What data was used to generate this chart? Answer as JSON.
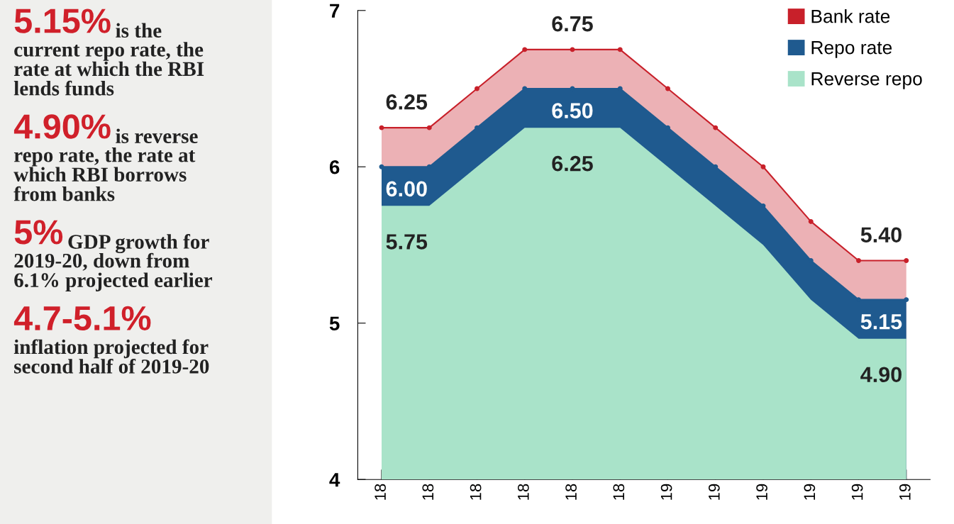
{
  "chart_data": [
    {
      "type": "other",
      "annotations": [
        "5.15%",
        "is the\ncurrent repo rate, the\nrate at which the RBI\nlends funds",
        "4.90%",
        "is reverse\nrepo rate, the rate at\nwhich RBI borrows\nfrom banks",
        "5%",
        "GDP growth for\n2019-20, down from\n6.1% projected earlier",
        "4.7-5.1%",
        "\ninflation projected for\nsecond half of 2019-20"
      ]
    },
    {
      "type": "area",
      "categories": [
        "18",
        "18",
        "18",
        "18",
        "18",
        "18",
        "19",
        "19",
        "19",
        "19",
        "19",
        "19"
      ],
      "ylim": [
        4,
        7
      ],
      "yticks": [
        4,
        5,
        6,
        7
      ],
      "legend": "top right",
      "series": [
        {
          "name": "Bank rate",
          "color": "#c8202a",
          "marker": "circle",
          "values": [
            6.25,
            6.25,
            6.5,
            6.75,
            6.75,
            6.75,
            6.5,
            6.25,
            6.0,
            5.65,
            5.4,
            5.4
          ],
          "value_labels": [
            "6.25",
            null,
            null,
            null,
            "6.75",
            null,
            null,
            null,
            null,
            null,
            null,
            "5.40"
          ]
        },
        {
          "name": "Repo rate",
          "color": "#1f5a8f",
          "marker": "circle",
          "values": [
            6.0,
            6.0,
            6.25,
            6.5,
            6.5,
            6.5,
            6.25,
            6.0,
            5.75,
            5.4,
            5.15,
            5.15
          ],
          "value_labels": [
            "6.00",
            null,
            null,
            null,
            "6.50",
            null,
            null,
            null,
            null,
            null,
            null,
            "5.15"
          ]
        },
        {
          "name": "Reverse repo",
          "color": "#a9e3c9",
          "values": [
            5.75,
            5.75,
            6.0,
            6.25,
            6.25,
            6.25,
            6.0,
            5.75,
            5.5,
            5.15,
            4.9,
            4.9
          ],
          "value_labels": [
            "5.75",
            null,
            null,
            null,
            "6.25",
            null,
            null,
            null,
            null,
            null,
            null,
            "4.90"
          ]
        }
      ]
    }
  ]
}
